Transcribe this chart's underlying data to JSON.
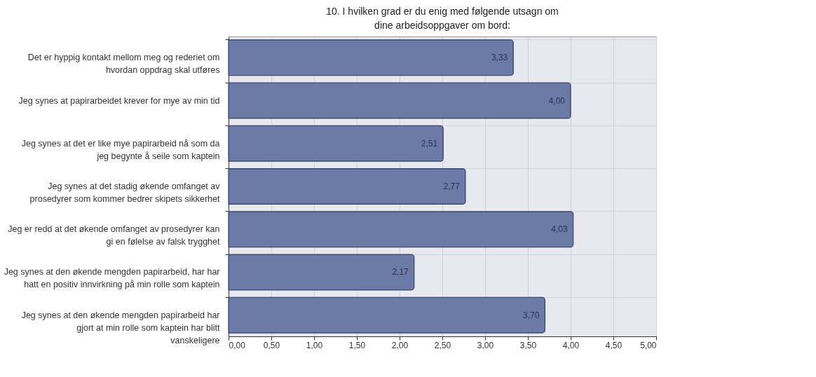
{
  "chart_data": {
    "type": "bar",
    "orientation": "horizontal",
    "title": "10. I hvilken grad er du enig med følgende utsagn om dine arbeidsoppgaver om bord:",
    "categories": [
      "Det er hyppig kontakt mellom meg og rederiet om hvordan oppdrag skal utføres",
      "Jeg synes at papirarbeidet krever for mye av min tid",
      "Jeg synes at det er like mye papirarbeid nå som da jeg begynte å seile som kaptein",
      "Jeg synes at det stadig økende omfanget av prosedyrer som kommer bedrer skipets sikkerhet",
      "Jeg er redd at det økende omfanget av prosedyrer kan gi en følelse av falsk trygghet",
      "Jeg synes at den økende mengden papirarbeid, har har hatt en positiv innvirkning på min rolle som kaptein",
      "Jeg synes at den økende mengden papirarbeid har gjort at min rolle som kaptein har blitt vanskeligere"
    ],
    "values": [
      3.33,
      4.0,
      2.51,
      2.77,
      4.03,
      2.17,
      3.7
    ],
    "value_labels": [
      "3,33",
      "4,00",
      "2,51",
      "2,77",
      "4,03",
      "2,17",
      "3,70"
    ],
    "color": "#6b7aa6",
    "xlim": [
      0,
      5
    ],
    "xticks": [
      {
        "value": 0,
        "label": "0,00"
      },
      {
        "value": 0.5,
        "label": "0,50"
      },
      {
        "value": 1,
        "label": "1,00"
      },
      {
        "value": 1.5,
        "label": "1,50"
      },
      {
        "value": 2,
        "label": "2,00"
      },
      {
        "value": 2.5,
        "label": "2,50"
      },
      {
        "value": 3,
        "label": "3,00"
      },
      {
        "value": 3.5,
        "label": "3,50"
      },
      {
        "value": 4,
        "label": "4,00"
      },
      {
        "value": 4.5,
        "label": "4,50"
      },
      {
        "value": 5,
        "label": "5,00"
      }
    ],
    "grid": true
  }
}
